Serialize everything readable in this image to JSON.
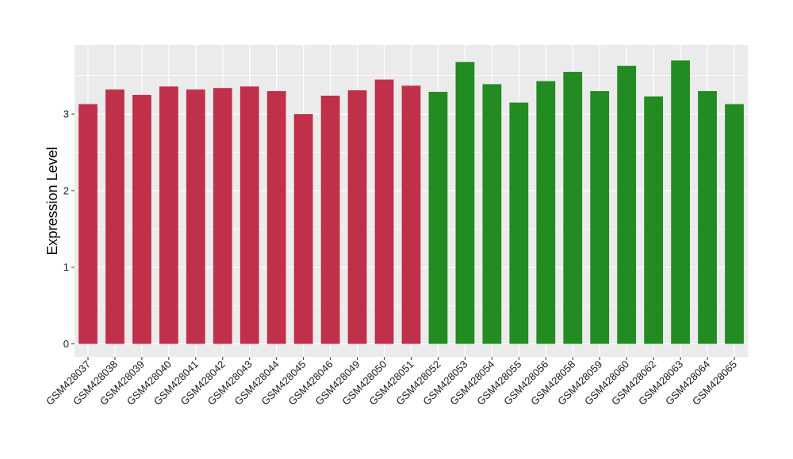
{
  "chart_data": {
    "type": "bar",
    "title": "",
    "xlabel": "",
    "ylabel": "Expression Level",
    "ylim": [
      -0.17,
      3.9
    ],
    "yticks": [
      0,
      1,
      2,
      3
    ],
    "grid": true,
    "legend": "none",
    "categories": [
      "GSM428037",
      "GSM428038",
      "GSM428039",
      "GSM428040",
      "GSM428041",
      "GSM428042",
      "GSM428043",
      "GSM428044",
      "GSM428045",
      "GSM428046",
      "GSM428049",
      "GSM428050",
      "GSM428051",
      "GSM428052",
      "GSM428053",
      "GSM428054",
      "GSM428055",
      "GSM428056",
      "GSM428058",
      "GSM428059",
      "GSM428060",
      "GSM428062",
      "GSM428063",
      "GSM428064",
      "GSM428065"
    ],
    "values": [
      3.13,
      3.32,
      3.25,
      3.36,
      3.32,
      3.34,
      3.36,
      3.3,
      3.0,
      3.24,
      3.31,
      3.45,
      3.37,
      3.29,
      3.68,
      3.39,
      3.15,
      3.43,
      3.55,
      3.3,
      3.63,
      3.23,
      3.7,
      3.3,
      3.13
    ],
    "bar_colors": [
      "#C0304A",
      "#C0304A",
      "#C0304A",
      "#C0304A",
      "#C0304A",
      "#C0304A",
      "#C0304A",
      "#C0304A",
      "#C0304A",
      "#C0304A",
      "#C0304A",
      "#C0304A",
      "#C0304A",
      "#228B22",
      "#228B22",
      "#228B22",
      "#228B22",
      "#228B22",
      "#228B22",
      "#228B22",
      "#228B22",
      "#228B22",
      "#228B22",
      "#228B22",
      "#228B22"
    ],
    "panel_background": "#EBEBEB",
    "grid_color": "#FFFFFF"
  }
}
